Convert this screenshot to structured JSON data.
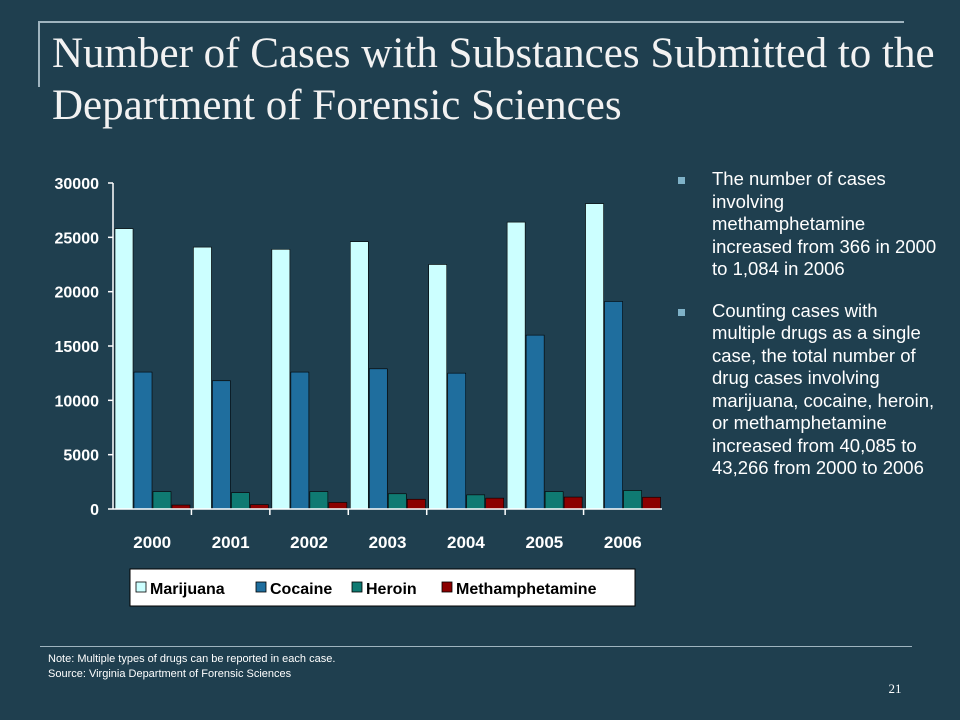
{
  "slide": {
    "title": "Number of Cases with Substances Submitted to the Department of Forensic Sciences",
    "bullets": [
      "The number of cases involving methamphetamine increased from 366 in 2000 to 1,084 in 2006",
      "Counting cases with multiple drugs as a single case, the total number of drug cases involving marijuana, cocaine, heroin, or methamphetamine increased from 40,085 to 43,266 from 2000 to 2006"
    ],
    "note_line1": "Note:  Multiple types of drugs can be reported in each case.",
    "note_line2": "Source: Virginia Department of Forensic Sciences",
    "page_number": "21"
  },
  "chart_data": {
    "type": "bar",
    "categories": [
      "2000",
      "2001",
      "2002",
      "2003",
      "2004",
      "2005",
      "2006"
    ],
    "series": [
      {
        "name": "Marijuana",
        "color": "#ccffff",
        "values": [
          25800,
          24100,
          23900,
          24600,
          22500,
          26400,
          28100
        ]
      },
      {
        "name": "Cocaine",
        "color": "#1f6e9e",
        "values": [
          12600,
          11800,
          12600,
          12900,
          12500,
          16000,
          19100
        ]
      },
      {
        "name": "Heroin",
        "color": "#0f7a72",
        "values": [
          1600,
          1500,
          1600,
          1400,
          1300,
          1600,
          1700
        ]
      },
      {
        "name": "Methamphetamine",
        "color": "#8b0000",
        "values": [
          366,
          400,
          600,
          900,
          1000,
          1100,
          1084
        ]
      }
    ],
    "yticks": [
      "0",
      "5000",
      "10000",
      "15000",
      "20000",
      "25000",
      "30000"
    ],
    "ylim": [
      0,
      30000
    ],
    "grid": false,
    "legend_position": "bottom",
    "title": "",
    "xlabel": "",
    "ylabel": ""
  }
}
